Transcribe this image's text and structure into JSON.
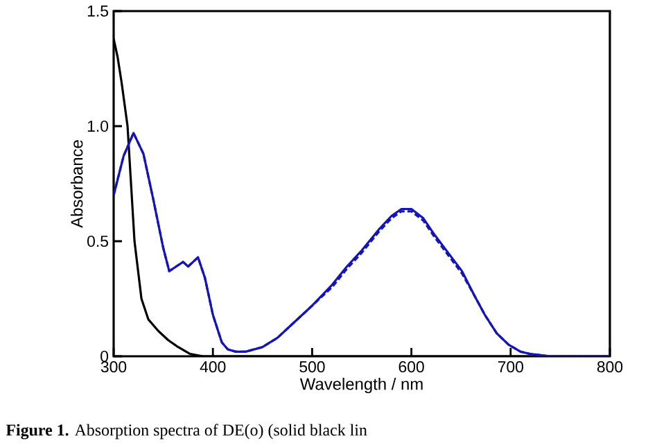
{
  "chart_data": {
    "type": "line",
    "xlabel": "Wavelength / nm",
    "ylabel": "Absorbance",
    "annotations": [
      "**Figure 1.** Absorption spectra of DE(o) (solid black lin"
    ],
    "xlim": [
      300,
      800
    ],
    "ylim": [
      0,
      1.5
    ],
    "xticks": [
      300,
      400,
      500,
      600,
      700,
      800
    ],
    "yticks": [
      0,
      {
        "value": 0.5,
        "label": "0.5"
      },
      {
        "value": 1,
        "label": "1.0"
      },
      1.5
    ],
    "grid": false,
    "marker": "none",
    "series": [
      {
        "color": "#000000",
        "line_style": "solid",
        "x": [
          300,
          304,
          308,
          314,
          321,
          328,
          335,
          345,
          355,
          365,
          377,
          390,
          400,
          420,
          500,
          600,
          700,
          800
        ],
        "values": [
          1.38,
          1.3,
          1.19,
          1.0,
          0.5,
          0.25,
          0.16,
          0.11,
          0.07,
          0.04,
          0.01,
          0.0,
          0.0,
          0.0,
          0.0,
          0.0,
          0.0,
          0.0
        ]
      },
      {
        "color": "#1414b8",
        "line_style": "solid",
        "x": [
          300,
          310,
          320,
          330,
          340,
          350,
          356,
          363,
          370,
          375,
          380,
          385,
          392,
          400,
          409,
          415,
          423,
          433,
          450,
          465,
          480,
          500,
          520,
          535,
          550,
          567,
          580,
          590,
          600,
          612,
          623,
          637,
          651,
          664,
          674,
          686,
          698,
          710,
          720,
          740,
          760,
          780,
          800
        ],
        "values": [
          0.7,
          0.87,
          0.97,
          0.88,
          0.68,
          0.47,
          0.37,
          0.39,
          0.41,
          0.39,
          0.41,
          0.43,
          0.34,
          0.18,
          0.06,
          0.03,
          0.02,
          0.02,
          0.04,
          0.08,
          0.14,
          0.22,
          0.31,
          0.39,
          0.46,
          0.55,
          0.61,
          0.64,
          0.64,
          0.6,
          0.53,
          0.45,
          0.37,
          0.26,
          0.18,
          0.1,
          0.05,
          0.02,
          0.01,
          0.0,
          0.0,
          0.0,
          0.0
        ]
      },
      {
        "color": "#1414b8",
        "line_style": "dashed",
        "x": [
          300,
          310,
          320,
          330,
          340,
          350,
          356,
          363,
          370,
          375,
          380,
          385,
          392,
          400,
          409,
          415,
          423,
          433,
          450,
          465,
          480,
          500,
          520,
          535,
          550,
          567,
          580,
          590,
          600,
          612,
          623,
          637,
          651,
          664,
          674,
          686,
          698,
          710,
          720,
          740,
          760,
          780,
          800
        ],
        "values": [
          0.7,
          0.87,
          0.97,
          0.88,
          0.68,
          0.47,
          0.37,
          0.39,
          0.41,
          0.39,
          0.41,
          0.43,
          0.34,
          0.18,
          0.06,
          0.03,
          0.02,
          0.02,
          0.04,
          0.08,
          0.14,
          0.22,
          0.3,
          0.38,
          0.45,
          0.54,
          0.6,
          0.63,
          0.63,
          0.59,
          0.52,
          0.44,
          0.36,
          0.26,
          0.18,
          0.1,
          0.05,
          0.02,
          0.01,
          0.0,
          0.0,
          0.0,
          0.0
        ]
      }
    ]
  }
}
